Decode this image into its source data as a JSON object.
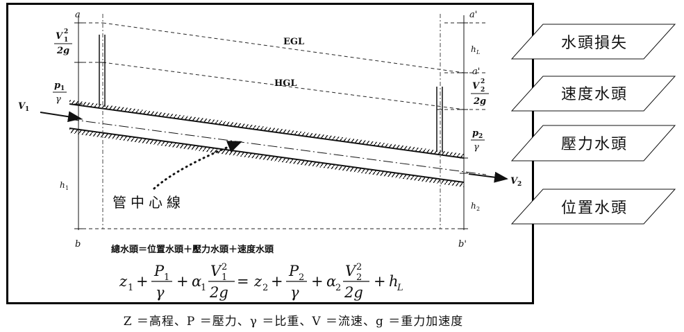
{
  "diagram": {
    "point_labels": {
      "a": "a",
      "a_prime_top": "a'",
      "a_prime_mid": "a'",
      "b": "b",
      "b_prime": "b'"
    },
    "line_labels": {
      "egl": "EGL",
      "hgl": "HGL"
    },
    "head_labels": {
      "v1_num": "V",
      "v1_sub": "1",
      "v1_sup": "2",
      "v1_den": "2g",
      "p1_num": "p",
      "p1_sub": "1",
      "p1_den": "γ",
      "h1": "h",
      "h1_sub": "1",
      "hL": "h",
      "hL_sub": "L",
      "v2_num": "V",
      "v2_sub": "2",
      "v2_sup": "2",
      "v2_den": "2g",
      "p2_num": "p",
      "p2_sub": "2",
      "p2_den": "γ",
      "h2": "h",
      "h2_sub": "2"
    },
    "velocity_labels": {
      "v1": "V",
      "v1_sub": "1",
      "v2": "V",
      "v2_sub": "2"
    },
    "centerline_label": "管中心線",
    "total_head_text": "總水頭＝位置水頭＋壓力水頭＋速度水頭"
  },
  "equation": {
    "z1": "z",
    "z1_sub": "1",
    "plus": "+",
    "P1": "P",
    "P1_sub": "1",
    "gamma": "γ",
    "alpha1": "α",
    "alpha1_sub": "1",
    "V1": "V",
    "V1_sub": "1",
    "sq": "2",
    "twog": "2g",
    "equals": "=",
    "z2": "z",
    "z2_sub": "2",
    "P2": "P",
    "P2_sub": "2",
    "alpha2": "α",
    "alpha2_sub": "2",
    "V2": "V",
    "V2_sub": "2",
    "hL": "h",
    "hL_sub": "L"
  },
  "legend_boxes": [
    {
      "label": "水頭損失"
    },
    {
      "label": "速度水頭"
    },
    {
      "label": "壓力水頭"
    },
    {
      "label": "位置水頭"
    }
  ],
  "caption": "Z ＝高程、P ＝壓力、γ ＝比重、V ＝流速、g ＝重力加速度"
}
